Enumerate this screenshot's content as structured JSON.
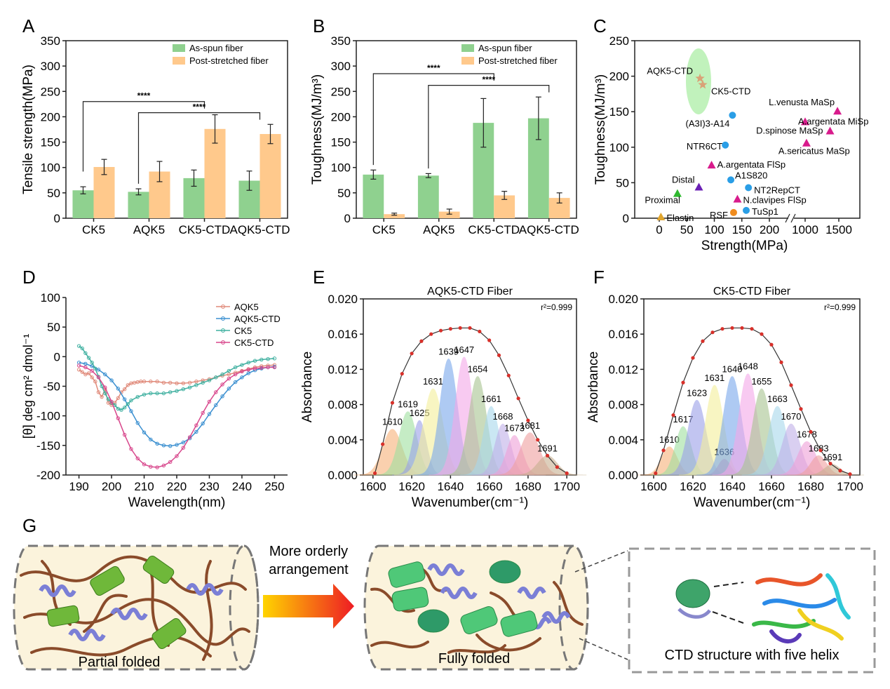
{
  "panels": {
    "A": "A",
    "B": "B",
    "C": "C",
    "D": "D",
    "E": "E",
    "F": "F",
    "G": "G"
  },
  "colors": {
    "green": "#8fd18f",
    "orange": "#ffc98c",
    "pink": "#d81b8c",
    "blue": "#2a9ee6",
    "purple": "#6a1fb5",
    "greenTri": "#2eb82e",
    "yellow": "#e0a52e",
    "orangeDot": "#f08c1e",
    "ellipse": "#b6f0b0",
    "fitRed": "#d8302a"
  },
  "chart_data": [
    {
      "id": "A",
      "type": "bar",
      "categories": [
        "CK5",
        "AQK5",
        "CK5-CTD",
        "AQK5-CTD"
      ],
      "series": [
        {
          "name": "As-spun fiber",
          "values": [
            55,
            52,
            79,
            74
          ],
          "errors": [
            7,
            6,
            16,
            19
          ]
        },
        {
          "name": "Post-stretched fiber",
          "values": [
            101,
            92,
            176,
            166
          ],
          "errors": [
            15,
            20,
            28,
            19
          ]
        }
      ],
      "ylabel": "Tensile strength(MPa)",
      "ylim": [
        0,
        350
      ],
      "yticks": [
        "0",
        "50",
        "100",
        "150",
        "200",
        "250",
        "300",
        "350"
      ],
      "significance": [
        {
          "label": "****",
          "from": 0,
          "to": 2,
          "level": 230
        },
        {
          "label": "****",
          "from": 1,
          "to": 3,
          "level": 208
        }
      ]
    },
    {
      "id": "B",
      "type": "bar",
      "categories": [
        "CK5",
        "AQK5",
        "CK5-CTD",
        "AQK5-CTD"
      ],
      "series": [
        {
          "name": "As-spun fiber",
          "values": [
            86,
            84,
            188,
            197
          ],
          "errors": [
            9,
            4,
            48,
            42
          ]
        },
        {
          "name": "Post-stretched fiber",
          "values": [
            8,
            13,
            45,
            40
          ],
          "errors": [
            2,
            5,
            8,
            10
          ]
        }
      ],
      "ylabel": "Toughness(MJ/m³)",
      "ylim": [
        0,
        350
      ],
      "yticks": [
        "0",
        "50",
        "100",
        "150",
        "200",
        "250",
        "300",
        "350"
      ],
      "significance": [
        {
          "label": "****",
          "from": 0,
          "to": 2,
          "level": 285
        },
        {
          "label": "****",
          "from": 1,
          "to": 3,
          "level": 262
        }
      ]
    },
    {
      "id": "C",
      "type": "scatter",
      "xlabel": "Strength(MPa)",
      "ylabel": "Toughness(MJ/m³)",
      "ylim": [
        0,
        250
      ],
      "xticks": [
        "0",
        "50",
        "100",
        "150",
        "200",
        "1000",
        "1500"
      ],
      "yticks": [
        "0",
        "50",
        "100",
        "150",
        "200",
        "250"
      ],
      "points": [
        {
          "label": "AQK5-CTD",
          "x": 74,
          "y": 197,
          "marker": "star",
          "color": "#d9a277"
        },
        {
          "label": "CK5-CTD",
          "x": 79,
          "y": 188,
          "marker": "star",
          "color": "#d9a277"
        },
        {
          "label": "(A3I)3-A14",
          "x": 133,
          "y": 145,
          "marker": "circle",
          "color": "#2a9ee6"
        },
        {
          "label": "NTR6CT",
          "x": 120,
          "y": 103,
          "marker": "circle",
          "color": "#2a9ee6"
        },
        {
          "label": "A1S820",
          "x": 130,
          "y": 54,
          "marker": "circle",
          "color": "#2a9ee6"
        },
        {
          "label": "NT2RepCT",
          "x": 162,
          "y": 43,
          "marker": "circle",
          "color": "#2a9ee6"
        },
        {
          "label": "TuSp1",
          "x": 158,
          "y": 11,
          "marker": "circle",
          "color": "#2a9ee6"
        },
        {
          "label": "RSF",
          "x": 135,
          "y": 8,
          "marker": "circle",
          "color": "#f08c1e"
        },
        {
          "label": "Elastin",
          "x": 3,
          "y": 2,
          "marker": "triangle",
          "color": "#e0a52e"
        },
        {
          "label": "Proximal",
          "x": 33,
          "y": 35,
          "marker": "triangle",
          "color": "#2eb82e"
        },
        {
          "label": "Distal",
          "x": 72,
          "y": 44,
          "marker": "triangle",
          "color": "#6a1fb5"
        },
        {
          "label": "A.argentata FlSp",
          "x": 95,
          "y": 75,
          "marker": "triangle",
          "color": "#d81b8c"
        },
        {
          "label": "N.clavipes FlSp",
          "x": 142,
          "y": 27,
          "marker": "triangle",
          "color": "#d81b8c"
        },
        {
          "label": "L.venusta MaSp",
          "x": 1480,
          "y": 151,
          "marker": "triangle",
          "color": "#d81b8c"
        },
        {
          "label": "A.argentata MiSp",
          "x": 1000,
          "y": 136,
          "marker": "triangle",
          "color": "#d81b8c"
        },
        {
          "label": "D.spinose MaSp",
          "x": 1370,
          "y": 123,
          "marker": "triangle",
          "color": "#d81b8c"
        },
        {
          "label": "A.sericatus MaSp",
          "x": 1020,
          "y": 106,
          "marker": "triangle",
          "color": "#d81b8c"
        }
      ]
    },
    {
      "id": "D",
      "type": "line",
      "xlabel": "Wavelength(nm)",
      "ylabel": "[θ] deg cm² dmol⁻¹",
      "xlim": [
        186,
        254
      ],
      "ylim": [
        -200,
        100
      ],
      "xticks": [
        "190",
        "200",
        "210",
        "220",
        "230",
        "240",
        "250"
      ],
      "yticks": [
        "-200",
        "-150",
        "-100",
        "-50",
        "0",
        "50",
        "100"
      ],
      "series": [
        {
          "name": "AQK5",
          "color": "#e08a7a",
          "x": [
            190,
            191,
            192,
            193,
            194,
            195,
            196,
            197,
            198,
            199,
            200,
            201,
            202,
            203,
            204,
            205,
            206,
            207,
            208,
            209,
            210,
            212,
            214,
            216,
            218,
            220,
            222,
            224,
            226,
            228,
            230,
            232,
            234,
            236,
            238,
            240,
            242,
            244,
            246,
            248,
            250
          ],
          "y": [
            -22,
            -26,
            -30,
            -28,
            -35,
            -42,
            -60,
            -68,
            -55,
            -78,
            -82,
            -78,
            -70,
            -60,
            -55,
            -48,
            -45,
            -44,
            -43,
            -42,
            -42,
            -42,
            -42,
            -44,
            -44,
            -45,
            -45,
            -44,
            -42,
            -40,
            -38,
            -35,
            -32,
            -30,
            -27,
            -24,
            -21,
            -18,
            -16,
            -15,
            -14
          ]
        },
        {
          "name": "AQK5-CTD",
          "color": "#3a8fd0",
          "x": [
            190,
            192,
            194,
            196,
            198,
            200,
            202,
            204,
            206,
            208,
            210,
            212,
            214,
            216,
            218,
            220,
            222,
            224,
            226,
            228,
            230,
            232,
            234,
            236,
            238,
            240,
            242,
            244,
            246,
            248,
            250
          ],
          "y": [
            -10,
            -12,
            -16,
            -22,
            -30,
            -40,
            -54,
            -72,
            -92,
            -112,
            -128,
            -140,
            -147,
            -150,
            -151,
            -149,
            -145,
            -138,
            -127,
            -113,
            -97,
            -82,
            -67,
            -54,
            -43,
            -35,
            -28,
            -23,
            -20,
            -18,
            -17
          ]
        },
        {
          "name": "CK5",
          "color": "#3fb0a0",
          "x": [
            190,
            191,
            192,
            193,
            194,
            195,
            196,
            197,
            198,
            199,
            200,
            201,
            202,
            203,
            204,
            205,
            206,
            208,
            210,
            212,
            214,
            216,
            218,
            220,
            222,
            224,
            226,
            228,
            230,
            232,
            234,
            236,
            238,
            240,
            242,
            244,
            246,
            248,
            250
          ],
          "y": [
            18,
            14,
            6,
            -2,
            -10,
            -20,
            -34,
            -50,
            -62,
            -72,
            -78,
            -82,
            -88,
            -90,
            -86,
            -80,
            -74,
            -68,
            -64,
            -62,
            -62,
            -62,
            -60,
            -58,
            -55,
            -52,
            -48,
            -44,
            -40,
            -35,
            -30,
            -24,
            -18,
            -14,
            -10,
            -7,
            -5,
            -4,
            -3
          ]
        },
        {
          "name": "CK5-CTD",
          "color": "#d8478c",
          "x": [
            190,
            192,
            194,
            196,
            198,
            200,
            202,
            204,
            206,
            208,
            210,
            212,
            214,
            216,
            218,
            220,
            222,
            224,
            226,
            228,
            230,
            232,
            234,
            236,
            238,
            240,
            242,
            244,
            246,
            248,
            250
          ],
          "y": [
            -15,
            -18,
            -24,
            -35,
            -52,
            -76,
            -104,
            -132,
            -156,
            -172,
            -182,
            -186,
            -187,
            -184,
            -178,
            -168,
            -154,
            -136,
            -116,
            -95,
            -76,
            -60,
            -47,
            -37,
            -30,
            -25,
            -22,
            -20,
            -19,
            -18,
            -18
          ]
        }
      ]
    },
    {
      "id": "E",
      "type": "area",
      "title": "AQK5-CTD Fiber",
      "annotation": "r²=0.999",
      "xlabel": "Wavenumber(cm⁻¹)",
      "ylabel": "Absorbance",
      "xlim": [
        1595,
        1705
      ],
      "ylim": [
        0,
        0.02
      ],
      "xticks": [
        "1600",
        "1620",
        "1640",
        "1660",
        "1680",
        "1700"
      ],
      "yticks": [
        "0.000",
        "0.004",
        "0.008",
        "0.012",
        "0.016",
        "0.020"
      ],
      "peaks": [
        {
          "label": "1610",
          "center": 1610,
          "height": 0.0052,
          "width": 5,
          "color": "#f7b27a"
        },
        {
          "label": "1619",
          "center": 1618,
          "height": 0.0072,
          "width": 4.5,
          "color": "#9fe0a0"
        },
        {
          "label": "1625",
          "center": 1624,
          "height": 0.0062,
          "width": 3.5,
          "color": "#9aa0e8"
        },
        {
          "label": "1631",
          "center": 1631,
          "height": 0.0098,
          "width": 5,
          "color": "#f4f09a"
        },
        {
          "label": "1639",
          "center": 1639,
          "height": 0.0132,
          "width": 4.5,
          "color": "#7aa8ec"
        },
        {
          "label": "1647",
          "center": 1647,
          "height": 0.0134,
          "width": 4.5,
          "color": "#f4a8e8"
        },
        {
          "label": "1654",
          "center": 1654,
          "height": 0.0112,
          "width": 4.5,
          "color": "#a8c490"
        },
        {
          "label": "1661",
          "center": 1661,
          "height": 0.0078,
          "width": 4,
          "color": "#a8d8ec"
        },
        {
          "label": "1668",
          "center": 1667,
          "height": 0.0058,
          "width": 4,
          "color": "#c0b0e8"
        },
        {
          "label": "1673",
          "center": 1673,
          "height": 0.0045,
          "width": 4,
          "color": "#f0a0d8"
        },
        {
          "label": "1681",
          "center": 1681,
          "height": 0.0048,
          "width": 5,
          "color": "#f0a0a0"
        },
        {
          "label": "1691",
          "center": 1690,
          "height": 0.0022,
          "width": 5,
          "color": "#c8b090"
        }
      ],
      "fit": {
        "color": "#d8302a",
        "x": [
          1601,
          1605,
          1610,
          1615,
          1620,
          1625,
          1630,
          1635,
          1640,
          1645,
          1650,
          1655,
          1660,
          1665,
          1670,
          1675,
          1680,
          1685,
          1690,
          1695,
          1700
        ],
        "y": [
          0.0002,
          0.0035,
          0.0082,
          0.0115,
          0.0138,
          0.0152,
          0.016,
          0.0164,
          0.0166,
          0.0167,
          0.0167,
          0.0163,
          0.0153,
          0.0136,
          0.0113,
          0.0087,
          0.0062,
          0.004,
          0.0022,
          0.0009,
          0.0002
        ]
      }
    },
    {
      "id": "F",
      "type": "area",
      "title": "CK5-CTD Fiber",
      "annotation": "r²=0.999",
      "xlabel": "Wavenumber(cm⁻¹)",
      "ylabel": "Absorbance",
      "xlim": [
        1595,
        1705
      ],
      "ylim": [
        0,
        0.02
      ],
      "xticks": [
        "1600",
        "1620",
        "1640",
        "1660",
        "1680",
        "1700"
      ],
      "yticks": [
        "0.000",
        "0.004",
        "0.008",
        "0.012",
        "0.016",
        "0.020"
      ],
      "peaks": [
        {
          "label": "1610",
          "center": 1608,
          "height": 0.0032,
          "width": 4,
          "color": "#f7b27a"
        },
        {
          "label": "1617",
          "center": 1615,
          "height": 0.0055,
          "width": 4,
          "color": "#9fe0a0"
        },
        {
          "label": "1623",
          "center": 1622,
          "height": 0.0085,
          "width": 4.5,
          "color": "#9aa0e8"
        },
        {
          "label": "1631",
          "center": 1631,
          "height": 0.0102,
          "width": 4.5,
          "color": "#f4f09a"
        },
        {
          "label": "1636",
          "center": 1636,
          "height": 0.0018,
          "width": 3,
          "color": "#e8a0a0"
        },
        {
          "label": "1640",
          "center": 1640,
          "height": 0.0112,
          "width": 4.5,
          "color": "#7aa8ec"
        },
        {
          "label": "1648",
          "center": 1648,
          "height": 0.0115,
          "width": 4.5,
          "color": "#f4a8e8"
        },
        {
          "label": "1655",
          "center": 1655,
          "height": 0.0098,
          "width": 4.5,
          "color": "#a8c490"
        },
        {
          "label": "1663",
          "center": 1663,
          "height": 0.0078,
          "width": 4.5,
          "color": "#a8d8ec"
        },
        {
          "label": "1670",
          "center": 1670,
          "height": 0.0058,
          "width": 4.5,
          "color": "#c0b0e8"
        },
        {
          "label": "1678",
          "center": 1678,
          "height": 0.0038,
          "width": 4.5,
          "color": "#f0a0d8"
        },
        {
          "label": "1683",
          "center": 1684,
          "height": 0.0022,
          "width": 4,
          "color": "#f0a0a0"
        },
        {
          "label": "1691",
          "center": 1691,
          "height": 0.0012,
          "width": 4,
          "color": "#c8b090"
        }
      ],
      "fit": {
        "color": "#d8302a",
        "x": [
          1601,
          1605,
          1610,
          1615,
          1620,
          1625,
          1630,
          1635,
          1640,
          1645,
          1650,
          1655,
          1660,
          1665,
          1670,
          1675,
          1680,
          1685,
          1690,
          1695,
          1700
        ],
        "y": [
          0.0002,
          0.0028,
          0.0068,
          0.0105,
          0.0133,
          0.0152,
          0.0162,
          0.0166,
          0.0167,
          0.0167,
          0.0166,
          0.016,
          0.0148,
          0.0128,
          0.0102,
          0.0075,
          0.0049,
          0.0028,
          0.0013,
          0.0005,
          0.0001
        ]
      }
    }
  ],
  "diagram": {
    "arrow_label_line1": "More orderly",
    "arrow_label_line2": "arrangement",
    "left_caption": "Partial folded",
    "middle_caption": "Fully folded",
    "right_caption": "CTD structure with five helix"
  }
}
